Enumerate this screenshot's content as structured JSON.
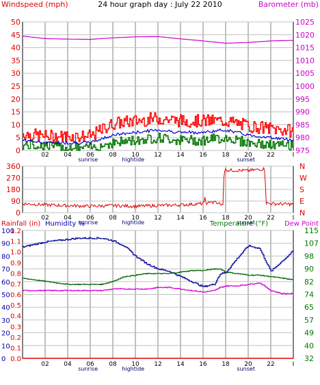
{
  "title": "24 hour graph day : July 22 2010",
  "colors": {
    "wind_axis": "#dd0000",
    "baro_axis": "#cc00cc",
    "wind_gust": "#ff0000",
    "wind_avg": "#0000cc",
    "wind_min": "#007700",
    "baro": "#cc00cc",
    "dir": "#dd0000",
    "rain_axis": "#dd0000",
    "humidity_axis": "#0000aa",
    "temp_axis": "#007700",
    "dew_axis": "#cc00cc",
    "humidity": "#000099",
    "temp": "#006600",
    "dew": "#dd00dd",
    "rain": "#dd0000",
    "grid": "#c0c0c0",
    "frame": "#000000"
  },
  "time_axis": {
    "labels": [
      "02",
      "04",
      "06",
      "08",
      "10",
      "12",
      "14",
      "16",
      "18",
      "20",
      "22",
      "I"
    ],
    "sunrise": "sunrise",
    "hightide": "hightide",
    "sunset": "sunset"
  },
  "chart_data": [
    {
      "type": "line",
      "name": "wind-barometer",
      "title": "24 hour graph day : July 22 2010",
      "ylabel_left": "Windspeed (mph)",
      "ylabel_right": "Barometer (mb)",
      "ylim_left": [
        0,
        50
      ],
      "yticks_left": [
        "0",
        "5",
        "10",
        "15",
        "20",
        "25",
        "30",
        "35",
        "40",
        "45",
        "50"
      ],
      "ylim_right": [
        975,
        1025
      ],
      "yticks_right": [
        "975",
        "980",
        "985",
        "990",
        "995",
        "1000",
        "1005",
        "1010",
        "1015",
        "1020",
        "1025"
      ],
      "grid": true,
      "x": [
        0,
        2,
        4,
        6,
        8,
        10,
        12,
        14,
        16,
        18,
        20,
        22,
        24
      ],
      "series": [
        {
          "values": [
            6,
            5,
            5,
            5,
            10,
            11,
            12,
            11,
            11,
            11,
            9,
            8,
            7
          ]
        },
        {
          "values": [
            4,
            3,
            3,
            3,
            6,
            7,
            8,
            7,
            7,
            8,
            6,
            5,
            4
          ]
        },
        {
          "values": [
            2,
            2,
            1,
            1,
            3,
            4,
            5,
            4,
            4,
            5,
            3,
            2,
            2
          ]
        },
        {
          "values": [
            1019.5,
            1018.5,
            1018.3,
            1018.2,
            1018.8,
            1019.2,
            1019.3,
            1018.4,
            1017.6,
            1016.7,
            1017.0,
            1017.6,
            1017.8
          ]
        }
      ]
    },
    {
      "type": "line",
      "name": "wind-direction",
      "ylim": [
        0,
        360
      ],
      "yticks_left": [
        "0",
        "90",
        "180",
        "270",
        "360"
      ],
      "yticks_right": [
        "N",
        "E",
        "S",
        "W",
        "N"
      ],
      "x": [
        0,
        2,
        4,
        6,
        8,
        10,
        12,
        14,
        16,
        17,
        17.8,
        17.85,
        18,
        20,
        21.5,
        21.55,
        22,
        24
      ],
      "values": [
        70,
        60,
        55,
        50,
        55,
        50,
        55,
        60,
        70,
        80,
        60,
        330,
        330,
        325,
        340,
        75,
        70,
        65
      ]
    },
    {
      "type": "line",
      "name": "rain-humidity-temperature",
      "ylabel_left": "Rainfall (in)",
      "ylabel_humidity": "Humidity %",
      "ylabel_right": "Temperature (°F)",
      "ylabel_dew": "Dew Point",
      "rain_ticks": [
        "0.0",
        "0.1",
        "0.2",
        "0.3",
        "0.4",
        "0.5",
        "0.6",
        "0.7",
        "0.8",
        "0.9",
        "1.0",
        "1.1",
        "1.2"
      ],
      "humidity_ticks": [
        "0",
        "10",
        "20",
        "30",
        "40",
        "50",
        "60",
        "70",
        "80",
        "90",
        "100"
      ],
      "temp_ticks": [
        "32",
        "40",
        "49",
        "57",
        "65",
        "74",
        "82",
        "90",
        "98",
        "107",
        "115"
      ],
      "temp_range": [
        32,
        115
      ],
      "grid": true,
      "x": [
        0,
        1,
        2,
        3,
        4,
        5,
        6,
        7,
        8,
        9,
        10,
        11,
        12,
        13,
        14,
        15,
        16,
        17,
        17.5,
        18,
        19,
        20,
        21,
        22,
        23,
        24
      ],
      "series": [
        {
          "values": [
            87,
            89,
            91,
            92,
            93,
            94,
            94,
            94,
            92,
            88,
            80,
            74,
            70,
            68,
            64,
            60,
            56,
            58,
            66,
            67,
            78,
            88,
            86,
            68,
            76,
            84
          ]
        },
        {
          "values": [
            84,
            83,
            82,
            81,
            80,
            80,
            80,
            80,
            82,
            85,
            86,
            87,
            87,
            87,
            88,
            89,
            89,
            90,
            90,
            88,
            87,
            86,
            86,
            85,
            84,
            83
          ]
        },
        {
          "values": [
            76,
            76,
            76,
            76,
            76,
            76,
            76,
            76,
            77,
            77,
            77,
            77,
            78,
            78,
            77,
            76,
            75,
            76,
            78,
            79,
            79,
            80,
            81,
            76,
            74,
            74
          ]
        },
        {
          "values": [
            0,
            0,
            0,
            0,
            0,
            0,
            0,
            0,
            0,
            0,
            0,
            0,
            0,
            0,
            0,
            0,
            0,
            0,
            0,
            0,
            0,
            0,
            0,
            0,
            0,
            0
          ]
        }
      ]
    }
  ]
}
